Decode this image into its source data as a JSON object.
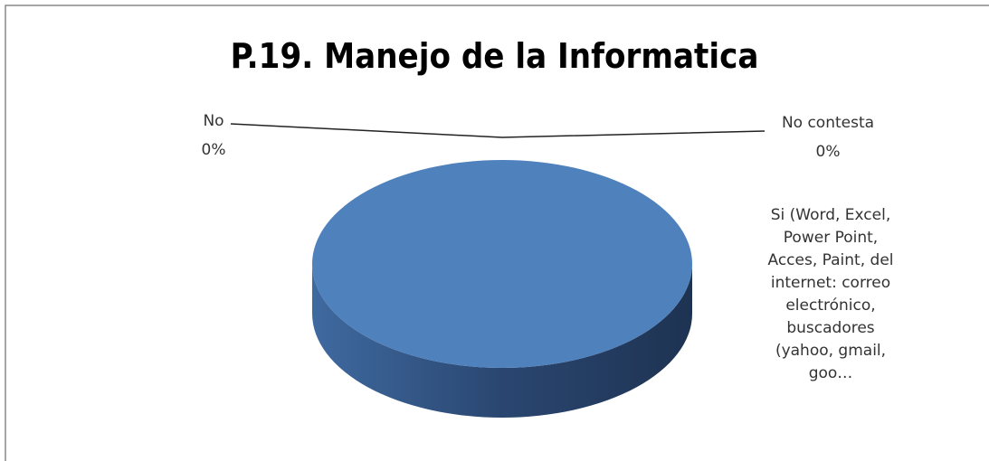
{
  "chart_data": {
    "type": "pie",
    "title": "P.19. Manejo de la Informatica",
    "categories": [
      "No",
      "No  contesta",
      "Si (Word, Excel, Power Point, Acces, Paint, del internet: correo electrónico, buscadores (yahoo, gmail, goo…"
    ],
    "values": [
      0,
      0,
      100
    ],
    "value_labels": [
      "0%",
      "0%",
      null
    ],
    "colors": [
      "#c0504d",
      "#9bbb59",
      "#4f81bd"
    ]
  }
}
